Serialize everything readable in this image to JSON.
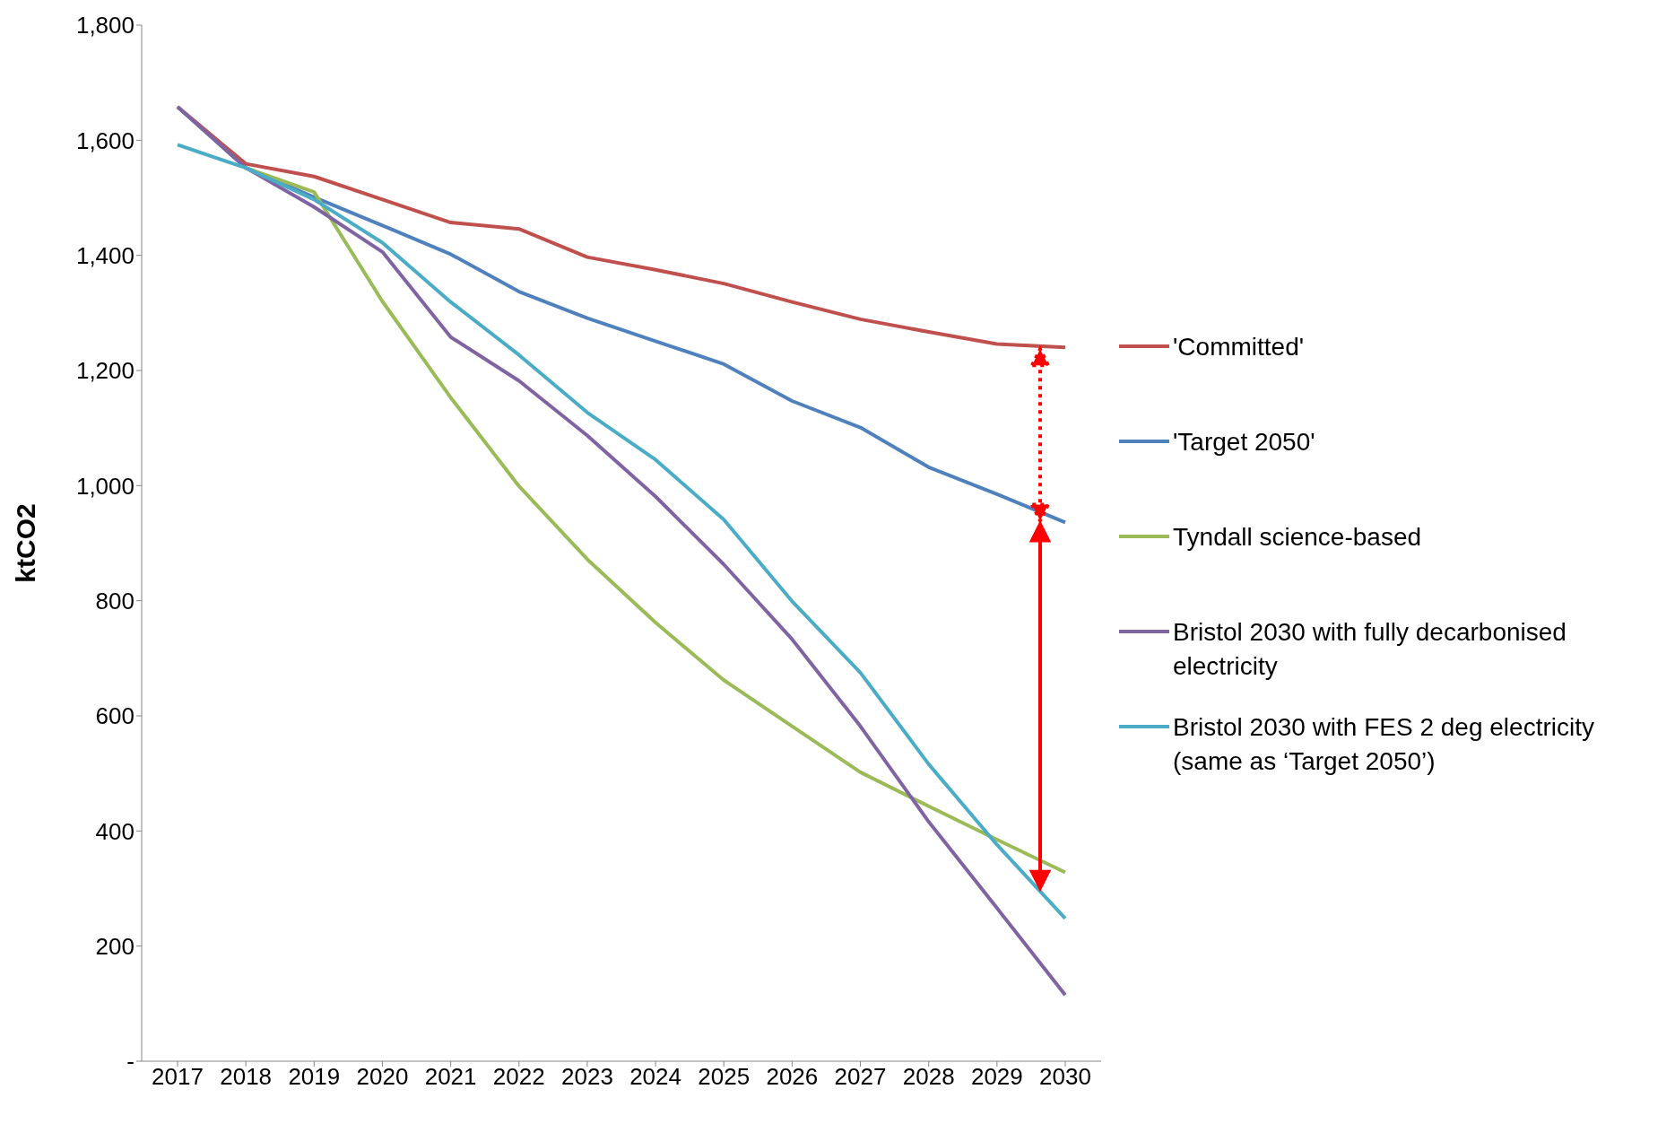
{
  "chart_data": {
    "type": "line",
    "ylabel": "ktCO2",
    "categories": [
      "2017",
      "2018",
      "2019",
      "2020",
      "2021",
      "2022",
      "2023",
      "2024",
      "2025",
      "2026",
      "2027",
      "2028",
      "2029",
      "2030"
    ],
    "series": [
      {
        "name": "'Committed'",
        "color": "#c0504d",
        "values": [
          1658,
          1559,
          1537,
          1497,
          1457,
          1446,
          1397,
          1375,
          1351,
          1319,
          1289,
          1267,
          1246,
          1240
        ]
      },
      {
        "name": "'Target 2050'",
        "color": "#4f81bd",
        "values": [
          1658,
          1552,
          1501,
          1452,
          1402,
          1337,
          1291,
          1251,
          1211,
          1147,
          1101,
          1032,
          985,
          936
        ]
      },
      {
        "name": "Tyndall science-based",
        "color": "#9bbb59",
        "values": [
          null,
          1552,
          1510,
          1320,
          1153,
          999,
          872,
          762,
          662,
          582,
          502,
          443,
          385,
          328
        ]
      },
      {
        "name": "Bristol 2030 with fully decarbonised electricity",
        "color": "#8064a2",
        "values": [
          1658,
          1552,
          1484,
          1406,
          1258,
          1182,
          1087,
          981,
          863,
          733,
          582,
          416,
          266,
          115
        ]
      },
      {
        "name": "Bristol 2030 with FES 2 deg electricity (same as ‘Target 2050’)",
        "color": "#4bacc6",
        "values": [
          1592,
          1552,
          1497,
          1422,
          1319,
          1227,
          1127,
          1045,
          941,
          799,
          675,
          516,
          376,
          248
        ]
      }
    ],
    "ylim": [
      0,
      1800
    ],
    "yticks": [
      {
        "value": 0,
        "label": "-"
      },
      {
        "value": 200,
        "label": "200"
      },
      {
        "value": 400,
        "label": "400"
      },
      {
        "value": 600,
        "label": "600"
      },
      {
        "value": 800,
        "label": "800"
      },
      {
        "value": 1000,
        "label": "1,000"
      },
      {
        "value": 1200,
        "label": "1,200"
      },
      {
        "value": 1400,
        "label": "1,400"
      },
      {
        "value": 1600,
        "label": "1,600"
      },
      {
        "value": 1800,
        "label": "1,800"
      }
    ],
    "grid": false,
    "legend": "right",
    "marker": "none",
    "line_style": "solid"
  }
}
